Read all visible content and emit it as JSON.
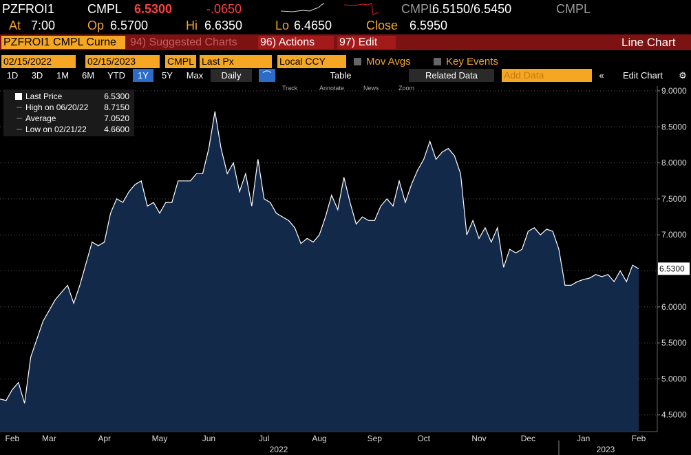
{
  "header": {
    "ticker": "PZFROI1",
    "source": "CMPL",
    "last": "6.5300",
    "change": "-.0650",
    "bid_source": "CMPL",
    "bid_ask": "6.5150/6.5450",
    "ask_source": "CMPL",
    "at_label": "At",
    "at": "7:00",
    "op_label": "Op",
    "op": "6.5700",
    "hi_label": "Hi",
    "hi": "6.6350",
    "lo_label": "Lo",
    "lo": "6.4650",
    "close_label": "Close",
    "close": "6.5950"
  },
  "toolbar": {
    "security": "PZFROI1 CMPL Curne",
    "suggested": "94) Suggested Charts",
    "actions": "96) Actions",
    "edit": "97) Edit",
    "view": "Line Chart"
  },
  "controls": {
    "start_date": "02/15/2022",
    "end_date": "02/15/2023",
    "source": "CMPL",
    "field": "Last Px",
    "currency": "Local CCY",
    "mov_avgs": "Mov Avgs",
    "key_events": "Key Events"
  },
  "periods": [
    "1D",
    "3D",
    "1M",
    "6M",
    "YTD",
    "1Y",
    "5Y",
    "Max"
  ],
  "options": {
    "frequency": "Daily",
    "table": "Table",
    "related": "Related Data",
    "add_data": "Add Data",
    "edit_chart": "Edit Chart"
  },
  "tools": [
    "Track",
    "Annotate",
    "News",
    "Zoom"
  ],
  "chart_data": {
    "type": "area",
    "line_color": "#ffffff",
    "fill_color": "#12294a",
    "grid": true,
    "categories": [
      null,
      null,
      "Feb",
      null,
      null,
      null,
      null,
      null,
      "Mar",
      null,
      null,
      null,
      null,
      null,
      null,
      null,
      null,
      "Apr",
      null,
      null,
      null,
      null,
      null,
      null,
      null,
      null,
      "May",
      null,
      null,
      null,
      null,
      null,
      null,
      null,
      "Jun",
      null,
      null,
      null,
      null,
      null,
      null,
      null,
      null,
      "Jul",
      null,
      null,
      null,
      null,
      null,
      null,
      null,
      null,
      "Aug",
      null,
      null,
      null,
      null,
      null,
      null,
      null,
      null,
      "Sep",
      null,
      null,
      null,
      null,
      null,
      null,
      null,
      "Oct",
      null,
      null,
      null,
      null,
      null,
      null,
      null,
      null,
      "Nov",
      null,
      null,
      null,
      null,
      null,
      null,
      null,
      "Dec",
      null,
      null,
      null,
      null,
      null,
      null,
      null,
      null,
      "Jan",
      null,
      null,
      null,
      null,
      null,
      null,
      null,
      null,
      "Feb"
    ],
    "values": [
      4.72,
      4.7,
      4.85,
      4.95,
      4.66,
      5.3,
      5.55,
      5.8,
      5.95,
      6.1,
      6.2,
      6.3,
      6.05,
      6.3,
      6.6,
      6.9,
      6.85,
      6.9,
      7.3,
      7.5,
      7.45,
      7.6,
      7.7,
      7.75,
      7.4,
      7.45,
      7.3,
      7.45,
      7.45,
      7.75,
      7.75,
      7.75,
      7.85,
      7.85,
      8.2,
      8.715,
      8.2,
      7.85,
      8.0,
      7.6,
      7.85,
      7.4,
      8.05,
      7.5,
      7.45,
      7.3,
      7.25,
      7.2,
      7.1,
      6.88,
      6.95,
      6.9,
      7.0,
      7.25,
      7.55,
      7.35,
      7.8,
      7.45,
      7.15,
      7.25,
      7.2,
      7.2,
      7.4,
      7.5,
      7.4,
      7.75,
      7.45,
      7.7,
      7.9,
      8.05,
      8.3,
      8.05,
      8.15,
      8.2,
      8.1,
      7.85,
      7.0,
      7.2,
      6.95,
      7.1,
      6.9,
      7.1,
      6.55,
      6.8,
      6.75,
      6.8,
      7.05,
      7.1,
      7.0,
      7.08,
      7.05,
      6.8,
      6.3,
      6.3,
      6.35,
      6.38,
      6.4,
      6.45,
      6.42,
      6.45,
      6.35,
      6.5,
      6.35,
      6.58,
      6.53
    ],
    "year_labels": [
      "2022",
      "2023"
    ],
    "ylim": [
      4.268,
      9.067
    ],
    "yticks": [
      {
        "value": 4.5,
        "label": "4.5000"
      },
      {
        "value": 5,
        "label": "5.0000"
      },
      {
        "value": 5.5,
        "label": "5.5000"
      },
      {
        "value": 6,
        "label": "6.0000"
      },
      {
        "value": 6.5,
        "label": "6.5000"
      },
      {
        "value": 7,
        "label": "7.0000"
      },
      {
        "value": 7.5,
        "label": "7.5000"
      },
      {
        "value": 8,
        "label": "8.0000"
      },
      {
        "value": 8.5,
        "label": "8.5000"
      },
      {
        "value": 9,
        "label": "9.0000"
      }
    ],
    "legend": [
      {
        "name": "Last Price",
        "value": "6.5300"
      },
      {
        "name": "High on 06/20/22",
        "value": "8.7150"
      },
      {
        "name": "Average",
        "value": "7.0520"
      },
      {
        "name": "Low on 02/21/22",
        "value": "4.6600"
      }
    ]
  }
}
